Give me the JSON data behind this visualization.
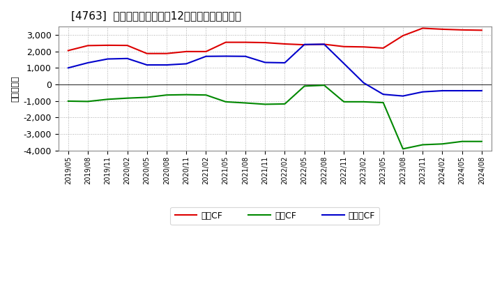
{
  "title": "[4763]  キャッシュフローの12か月移動合計の推移",
  "ylabel": "（百万円）",
  "background_color": "#ffffff",
  "plot_bg_color": "#ffffff",
  "grid_color": "#aaaaaa",
  "x_labels": [
    "2019/05",
    "2019/08",
    "2019/11",
    "2020/02",
    "2020/05",
    "2020/08",
    "2020/11",
    "2021/02",
    "2021/05",
    "2021/08",
    "2021/11",
    "2022/02",
    "2022/05",
    "2022/08",
    "2022/11",
    "2023/02",
    "2023/05",
    "2023/08",
    "2023/11",
    "2024/02",
    "2024/05",
    "2024/08"
  ],
  "operating_cf": [
    2050,
    2350,
    2370,
    2360,
    1870,
    1870,
    1990,
    1990,
    2550,
    2550,
    2530,
    2450,
    2400,
    2430,
    2290,
    2270,
    2200,
    2950,
    3400,
    3340,
    3300,
    3280
  ],
  "investing_cf": [
    -1010,
    -1030,
    -900,
    -830,
    -780,
    -640,
    -620,
    -640,
    -1050,
    -1120,
    -1200,
    -1180,
    -100,
    -50,
    -1050,
    -1050,
    -1100,
    -3900,
    -3650,
    -3600,
    -3450,
    -3450
  ],
  "free_cf": [
    1000,
    1310,
    1540,
    1570,
    1180,
    1180,
    1250,
    1700,
    1710,
    1700,
    1330,
    1310,
    2420,
    2430,
    1270,
    100,
    -600,
    -700,
    -450,
    -380,
    -380,
    -380
  ],
  "ylim": [
    -4000,
    3500
  ],
  "yticks": [
    -4000,
    -3000,
    -2000,
    -1000,
    0,
    1000,
    2000,
    3000
  ],
  "line_colors": {
    "operating": "#dd0000",
    "investing": "#008800",
    "free": "#0000cc"
  },
  "legend_labels": {
    "operating": "営業CF",
    "investing": "投資CF",
    "free": "フリーCF"
  }
}
